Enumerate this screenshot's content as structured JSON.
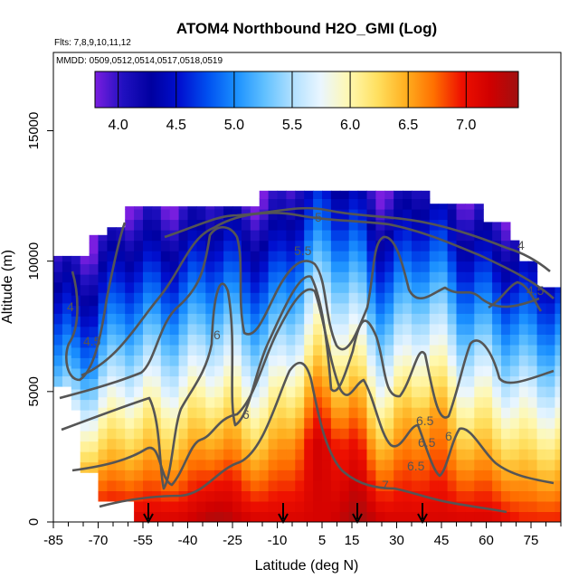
{
  "chart_data": {
    "type": "heatmap",
    "title": "ATOM4 Northbound H2O_GMI (Log)",
    "flights_label": "Flts: 7,8,9,10,11,12",
    "dates_label": "MMDD: 0509,0512,0514,0517,0518,0519",
    "xlabel": "Latitude (deg N)",
    "ylabel": "Altitude (m)",
    "xlim": [
      -85,
      85
    ],
    "ylim": [
      0,
      18000
    ],
    "x_ticks": [
      -85,
      -70,
      -55,
      -40,
      -25,
      -10,
      5,
      15,
      30,
      45,
      60,
      75
    ],
    "y_ticks": [
      0,
      5000,
      10000,
      15000
    ],
    "colorbar": {
      "range": [
        3.8,
        7.45
      ],
      "ticks": [
        "4.0",
        "4.5",
        "5.0",
        "5.5",
        "6.0",
        "6.5",
        "7.0"
      ],
      "colors": [
        "#7a1ee0",
        "#2010c0",
        "#0000a0",
        "#0010d0",
        "#0050f0",
        "#1a90ff",
        "#60c0ff",
        "#b0e0ff",
        "#eaf6ff",
        "#fff8b0",
        "#ffe060",
        "#ffb020",
        "#ff7000",
        "#ee1000",
        "#d00000",
        "#a01010"
      ]
    },
    "field_description": "log10 water vapour mixing ratio versus latitude and altitude",
    "contour_labels": [
      "4",
      "4.5",
      "5",
      "5.5",
      "6",
      "6",
      "6",
      "6.5",
      "6.5",
      "6.5",
      "7",
      "4",
      "4.5"
    ],
    "flight_markers_lat": [
      -52,
      -8,
      16,
      39
    ]
  }
}
